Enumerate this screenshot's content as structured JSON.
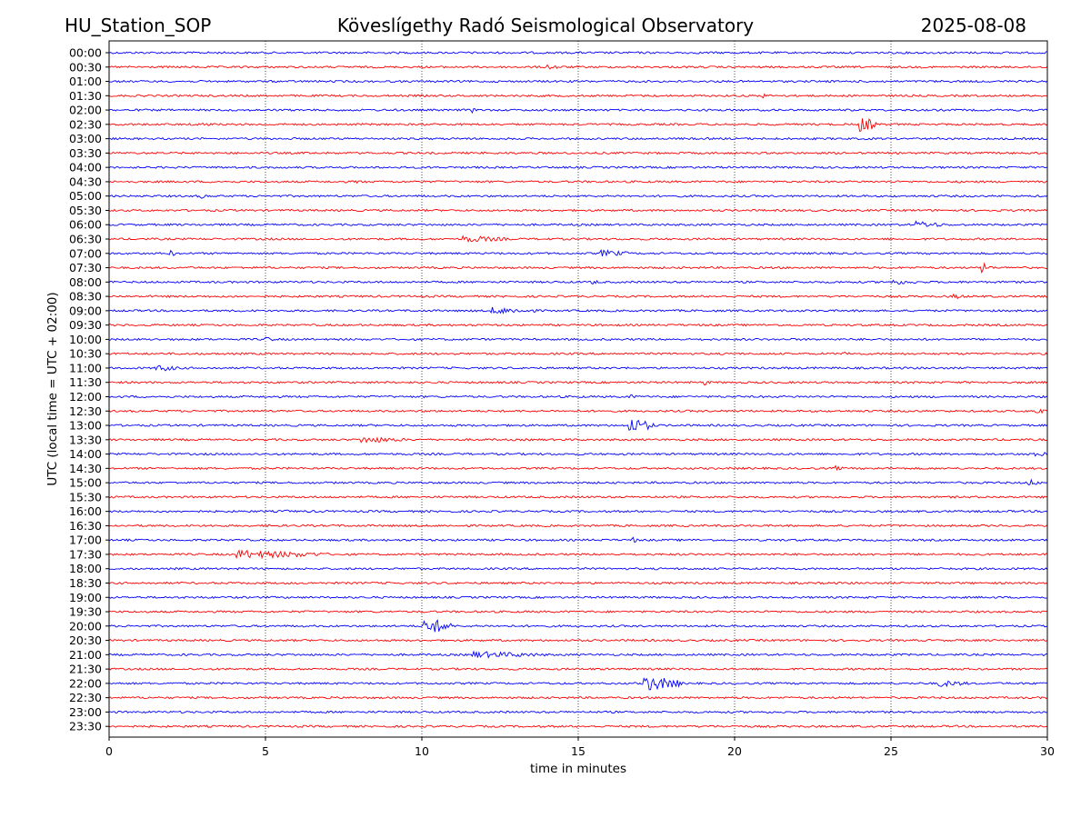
{
  "header": {
    "station": "HU_Station_SOP",
    "title": "Köveslígethy Radó Seismological Observatory",
    "date": "2025-08-08"
  },
  "chart_data": {
    "type": "line",
    "title": "Köveslígethy Radó Seismological Observatory",
    "xlabel": "time in minutes",
    "ylabel": "UTC (local time = UTC + 02:00)",
    "xlim": [
      0,
      30
    ],
    "xticks": [
      0,
      5,
      10,
      15,
      20,
      25,
      30
    ],
    "grid": "vertical dotted lines at 5-minute intervals",
    "series_colors": [
      "#0000ff",
      "#ff0000"
    ],
    "rows": [
      {
        "label": "00:00",
        "color": "#0000ff",
        "events": []
      },
      {
        "label": "00:30",
        "color": "#ff0000",
        "events": [
          {
            "t": 14.0,
            "amp": 3,
            "dur": 0.6
          }
        ]
      },
      {
        "label": "01:00",
        "color": "#0000ff",
        "events": []
      },
      {
        "label": "01:30",
        "color": "#ff0000",
        "events": [
          {
            "t": 20.9,
            "amp": 3,
            "dur": 0.2
          }
        ]
      },
      {
        "label": "02:00",
        "color": "#0000ff",
        "events": [
          {
            "t": 11.6,
            "amp": 3,
            "dur": 0.3
          }
        ]
      },
      {
        "label": "02:30",
        "color": "#ff0000",
        "events": [
          {
            "t": 2.8,
            "amp": 3,
            "dur": 0.5
          },
          {
            "t": 24.0,
            "amp": 9,
            "dur": 0.6
          }
        ]
      },
      {
        "label": "03:00",
        "color": "#0000ff",
        "events": []
      },
      {
        "label": "03:30",
        "color": "#ff0000",
        "events": []
      },
      {
        "label": "04:00",
        "color": "#0000ff",
        "events": []
      },
      {
        "label": "04:30",
        "color": "#ff0000",
        "events": [
          {
            "t": 7.9,
            "amp": 3,
            "dur": 0.2
          }
        ]
      },
      {
        "label": "05:00",
        "color": "#0000ff",
        "events": [
          {
            "t": 2.9,
            "amp": 3,
            "dur": 0.3
          }
        ]
      },
      {
        "label": "05:30",
        "color": "#ff0000",
        "events": []
      },
      {
        "label": "06:00",
        "color": "#0000ff",
        "events": [
          {
            "t": 25.8,
            "amp": 4,
            "dur": 1.0
          }
        ]
      },
      {
        "label": "06:30",
        "color": "#ff0000",
        "events": [
          {
            "t": 11.3,
            "amp": 4,
            "dur": 1.5
          }
        ]
      },
      {
        "label": "07:00",
        "color": "#0000ff",
        "events": [
          {
            "t": 1.9,
            "amp": 4,
            "dur": 0.3
          },
          {
            "t": 15.7,
            "amp": 4,
            "dur": 1.0
          }
        ]
      },
      {
        "label": "07:30",
        "color": "#ff0000",
        "events": [
          {
            "t": 27.9,
            "amp": 7,
            "dur": 0.3
          }
        ]
      },
      {
        "label": "08:00",
        "color": "#0000ff",
        "events": [
          {
            "t": 15.4,
            "amp": 3,
            "dur": 0.4
          },
          {
            "t": 25.0,
            "amp": 3,
            "dur": 1.0
          }
        ]
      },
      {
        "label": "08:30",
        "color": "#ff0000",
        "events": [
          {
            "t": 27.0,
            "amp": 3,
            "dur": 0.5
          }
        ]
      },
      {
        "label": "09:00",
        "color": "#0000ff",
        "events": [
          {
            "t": 12.2,
            "amp": 4,
            "dur": 1.5
          }
        ]
      },
      {
        "label": "09:30",
        "color": "#ff0000",
        "events": []
      },
      {
        "label": "10:00",
        "color": "#0000ff",
        "events": [
          {
            "t": 5.0,
            "amp": 3,
            "dur": 0.4
          }
        ]
      },
      {
        "label": "10:30",
        "color": "#ff0000",
        "events": [
          {
            "t": 23.5,
            "amp": 4,
            "dur": 0.2
          }
        ]
      },
      {
        "label": "11:00",
        "color": "#0000ff",
        "events": [
          {
            "t": 1.5,
            "amp": 4,
            "dur": 0.8
          }
        ]
      },
      {
        "label": "11:30",
        "color": "#ff0000",
        "events": [
          {
            "t": 19.0,
            "amp": 4,
            "dur": 0.2
          }
        ]
      },
      {
        "label": "12:00",
        "color": "#0000ff",
        "events": [
          {
            "t": 16.6,
            "amp": 3,
            "dur": 0.3
          }
        ]
      },
      {
        "label": "12:30",
        "color": "#ff0000",
        "events": [
          {
            "t": 29.6,
            "amp": 4,
            "dur": 0.4
          }
        ]
      },
      {
        "label": "13:00",
        "color": "#0000ff",
        "events": [
          {
            "t": 16.6,
            "amp": 9,
            "dur": 0.8
          }
        ]
      },
      {
        "label": "13:30",
        "color": "#ff0000",
        "events": [
          {
            "t": 8.0,
            "amp": 4,
            "dur": 1.5
          }
        ]
      },
      {
        "label": "14:00",
        "color": "#0000ff",
        "events": [
          {
            "t": 29.6,
            "amp": 4,
            "dur": 0.4
          }
        ]
      },
      {
        "label": "14:30",
        "color": "#ff0000",
        "events": [
          {
            "t": 23.2,
            "amp": 3,
            "dur": 0.3
          }
        ]
      },
      {
        "label": "15:00",
        "color": "#0000ff",
        "events": [
          {
            "t": 29.4,
            "amp": 4,
            "dur": 0.4
          }
        ]
      },
      {
        "label": "15:30",
        "color": "#ff0000",
        "events": []
      },
      {
        "label": "16:00",
        "color": "#0000ff",
        "events": [
          {
            "t": 5.5,
            "amp": 3,
            "dur": 0.3
          }
        ]
      },
      {
        "label": "16:30",
        "color": "#ff0000",
        "events": []
      },
      {
        "label": "17:00",
        "color": "#0000ff",
        "events": [
          {
            "t": 16.7,
            "amp": 4,
            "dur": 0.2
          }
        ]
      },
      {
        "label": "17:30",
        "color": "#ff0000",
        "events": [
          {
            "t": 4.0,
            "amp": 5,
            "dur": 3.0
          }
        ]
      },
      {
        "label": "18:00",
        "color": "#0000ff",
        "events": []
      },
      {
        "label": "18:30",
        "color": "#ff0000",
        "events": []
      },
      {
        "label": "19:00",
        "color": "#0000ff",
        "events": []
      },
      {
        "label": "19:30",
        "color": "#ff0000",
        "events": []
      },
      {
        "label": "20:00",
        "color": "#0000ff",
        "events": [
          {
            "t": 10.05,
            "amp": 10,
            "dur": 0.9
          }
        ]
      },
      {
        "label": "20:30",
        "color": "#ff0000",
        "events": []
      },
      {
        "label": "21:00",
        "color": "#0000ff",
        "events": [
          {
            "t": 11.5,
            "amp": 4,
            "dur": 2.5
          }
        ]
      },
      {
        "label": "21:30",
        "color": "#ff0000",
        "events": []
      },
      {
        "label": "22:00",
        "color": "#0000ff",
        "events": [
          {
            "t": 17.1,
            "amp": 9,
            "dur": 1.2
          },
          {
            "t": 26.5,
            "amp": 4,
            "dur": 1.0
          }
        ]
      },
      {
        "label": "22:30",
        "color": "#ff0000",
        "events": []
      },
      {
        "label": "23:00",
        "color": "#0000ff",
        "events": []
      },
      {
        "label": "23:30",
        "color": "#ff0000",
        "events": []
      }
    ]
  }
}
